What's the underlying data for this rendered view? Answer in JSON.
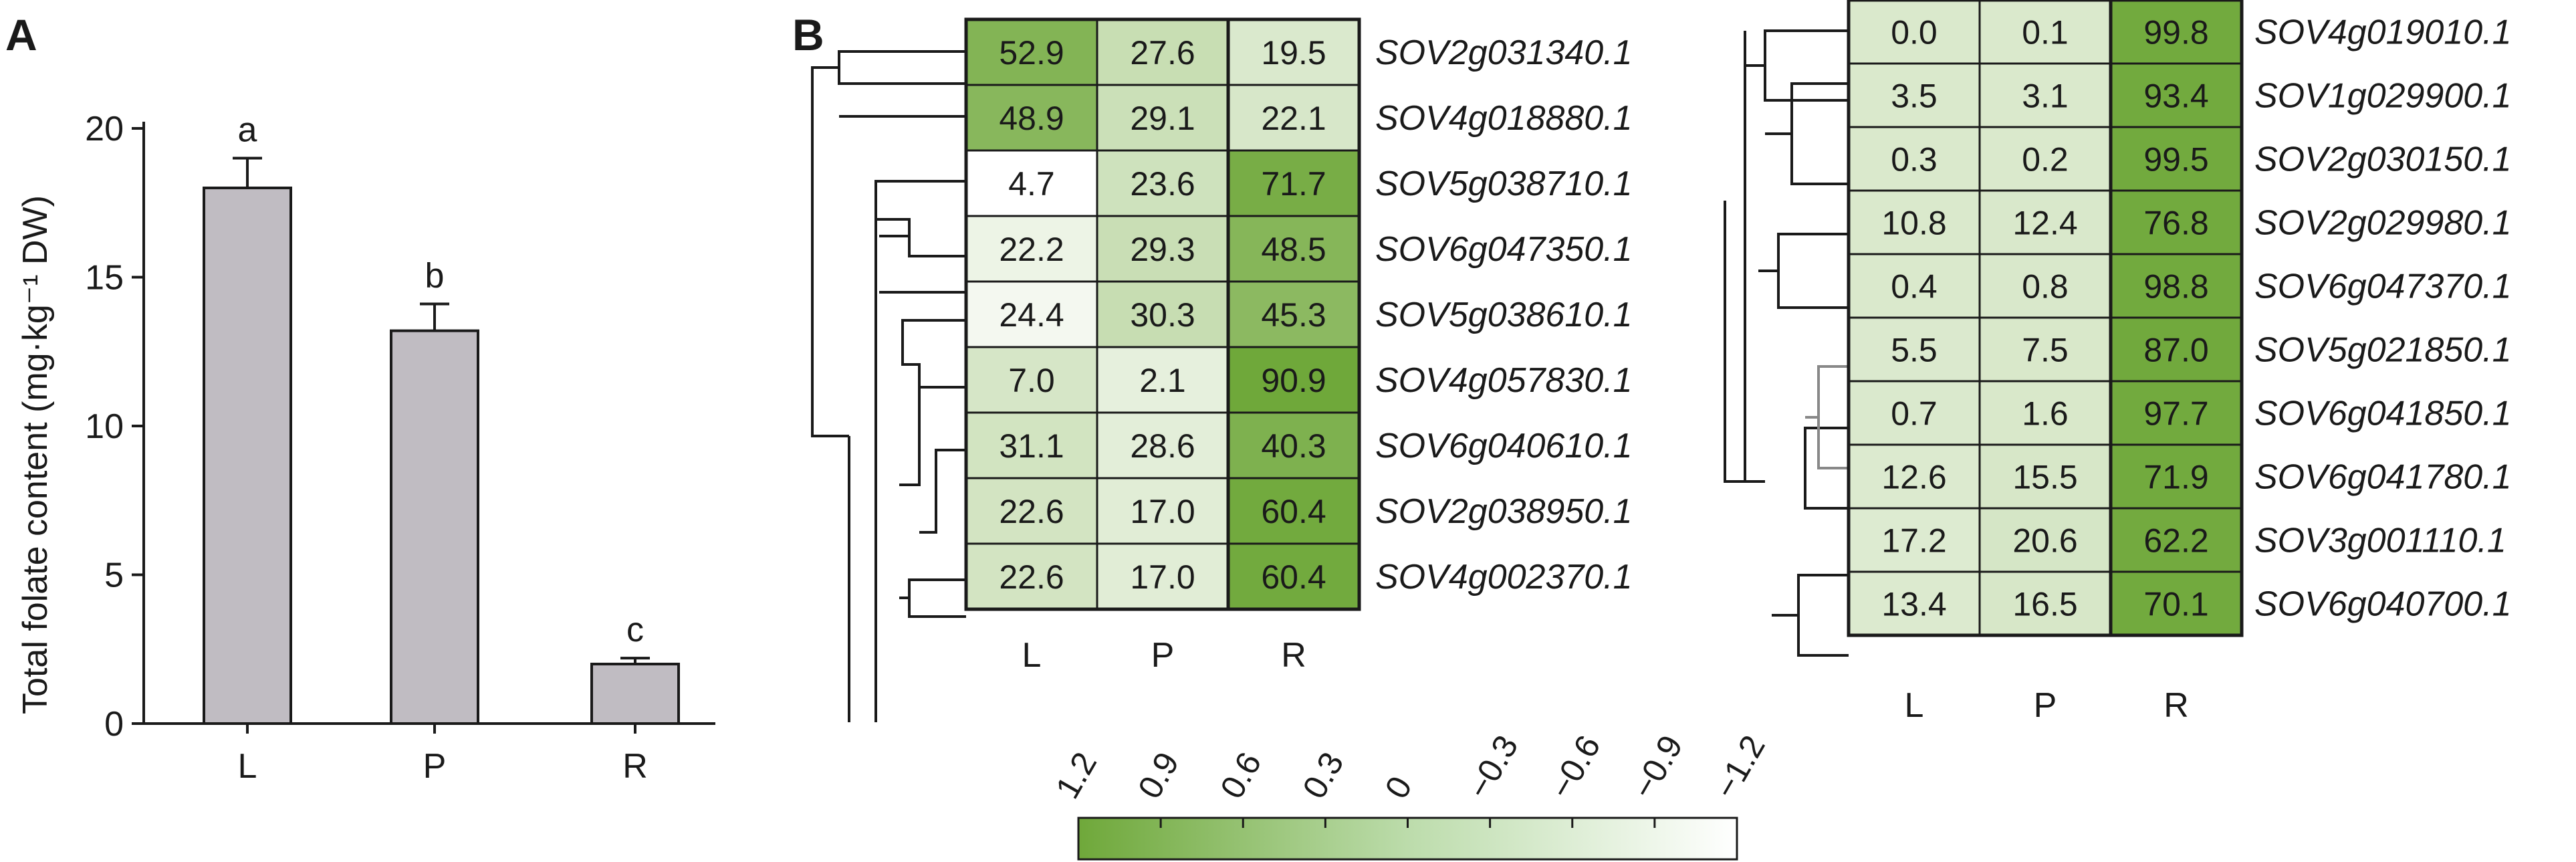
{
  "panel_a_label": "A",
  "panel_b_label": "B",
  "chart_data": [
    {
      "type": "bar",
      "panel": "A",
      "categories": [
        "L",
        "P",
        "R"
      ],
      "values": [
        18.0,
        13.2,
        2.0
      ],
      "errors": [
        1.0,
        0.9,
        0.2
      ],
      "significance": [
        "a",
        "b",
        "c"
      ],
      "ylabel": "Total folate content (mg·kg⁻¹ DW)",
      "yticks": [
        "0",
        "5",
        "10",
        "15",
        "20"
      ],
      "ylim": [
        0,
        20
      ],
      "bar_color": "#c0bcc2"
    },
    {
      "type": "heatmap",
      "panel": "B",
      "columns": [
        "L",
        "P",
        "R"
      ],
      "rows": [
        {
          "gene": "SOV2g031340.1",
          "values": [
            "52.9",
            "27.6",
            "19.5"
          ],
          "z": [
            0.87,
            -0.28,
            -0.59
          ]
        },
        {
          "gene": "SOV4g018880.1",
          "values": [
            "48.9",
            "29.1",
            "22.1"
          ],
          "z": [
            0.79,
            -0.34,
            -0.54
          ]
        },
        {
          "gene": "SOV5g038710.1",
          "values": [
            "4.7",
            "23.6",
            "71.7"
          ],
          "z": [
            -1.2,
            -0.39,
            1.05
          ]
        },
        {
          "gene": "SOV6g047350.1",
          "values": [
            "22.2",
            "29.3",
            "48.5"
          ],
          "z": [
            -0.9,
            -0.3,
            0.82
          ]
        },
        {
          "gene": "SOV5g038610.1",
          "values": [
            "24.4",
            "30.3",
            "45.3"
          ],
          "z": [
            -1.02,
            -0.26,
            0.72
          ]
        },
        {
          "gene": "SOV4g057830.1",
          "values": [
            "7.0",
            "2.1",
            "90.9"
          ],
          "z": [
            -0.52,
            -0.79,
            1.2
          ]
        },
        {
          "gene": "SOV6g040610.1",
          "values": [
            "31.1",
            "28.6",
            "40.3"
          ],
          "z": [
            -0.45,
            -0.74,
            0.95
          ]
        },
        {
          "gene": "SOV2g038950.1",
          "values": [
            "22.6",
            "17.0",
            "60.4"
          ],
          "z": [
            -0.46,
            -0.7,
            1.15
          ]
        },
        {
          "gene": "SOV4g002370.1",
          "values": [
            "22.6",
            "17.0",
            "60.4"
          ],
          "z": [
            -0.46,
            -0.7,
            1.15
          ]
        }
      ],
      "rows_right": [
        {
          "gene": "SOV4g019010.1",
          "values": [
            "0.0",
            "0.1",
            "99.8"
          ],
          "z": [
            -0.58,
            -0.58,
            1.15
          ]
        },
        {
          "gene": "SOV1g029900.1",
          "values": [
            "3.5",
            "3.1",
            "93.4"
          ],
          "z": [
            -0.58,
            -0.58,
            1.15
          ]
        },
        {
          "gene": "SOV2g030150.1",
          "values": [
            "0.3",
            "0.2",
            "99.5"
          ],
          "z": [
            -0.58,
            -0.58,
            1.15
          ]
        },
        {
          "gene": "SOV2g029980.1",
          "values": [
            "10.8",
            "12.4",
            "76.8"
          ],
          "z": [
            -0.58,
            -0.57,
            1.15
          ]
        },
        {
          "gene": "SOV6g047370.1",
          "values": [
            "0.4",
            "0.8",
            "98.8"
          ],
          "z": [
            -0.58,
            -0.57,
            1.15
          ]
        },
        {
          "gene": "SOV5g021850.1",
          "values": [
            "5.5",
            "7.5",
            "87.0"
          ],
          "z": [
            -0.6,
            -0.56,
            1.16
          ]
        },
        {
          "gene": "SOV6g041850.1",
          "values": [
            "0.7",
            "1.6",
            "97.7"
          ],
          "z": [
            -0.59,
            -0.56,
            1.15
          ]
        },
        {
          "gene": "SOV6g041780.1",
          "values": [
            "12.6",
            "15.5",
            "71.9"
          ],
          "z": [
            -0.62,
            -0.53,
            1.15
          ]
        },
        {
          "gene": "SOV3g001110.1",
          "values": [
            "17.2",
            "20.6",
            "62.2"
          ],
          "z": [
            -0.64,
            -0.5,
            1.14
          ]
        },
        {
          "gene": "SOV6g040700.1",
          "values": [
            "13.4",
            "16.5",
            "70.1"
          ],
          "z": [
            -0.62,
            -0.53,
            1.15
          ]
        }
      ],
      "colorbar_ticks": [
        "1.2",
        "0.9",
        "0.6",
        "0.3",
        "0",
        "−0.3",
        "−0.6",
        "−0.9",
        "−1.2"
      ],
      "colorbar_range": [
        1.2,
        -1.2
      ],
      "color_high": "#6fa83a",
      "color_low": "#ffffff"
    }
  ]
}
